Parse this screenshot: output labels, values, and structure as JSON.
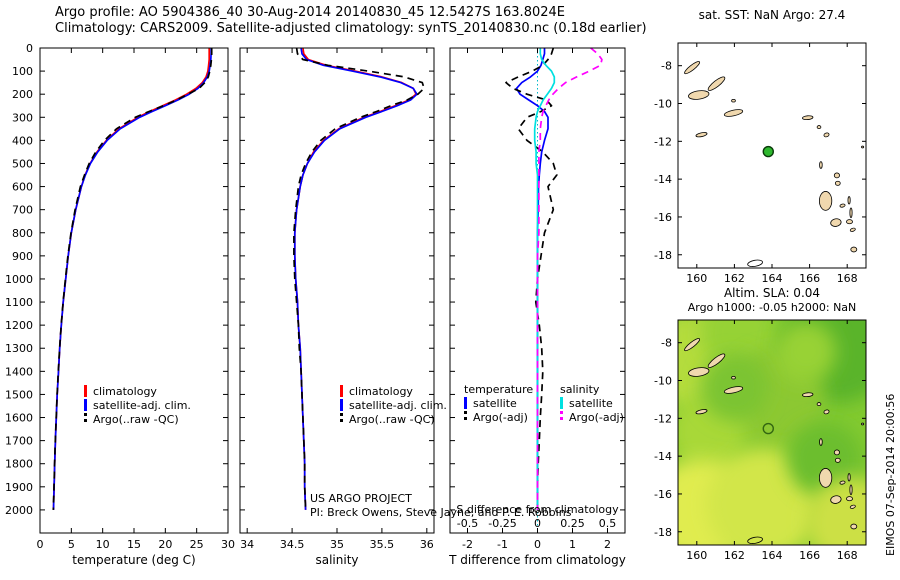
{
  "header": {
    "line1": "Argo profile: AO 5904386_40 30-Aug-2014 20140830_45 12.5427S 163.8024E",
    "line2": "Climatology: CARS2009. Satellite-adjusted climatology: synTS_20140830.nc (0.18d earlier)"
  },
  "footer": {
    "line1": "US ARGO PROJECT",
    "line2": "PI: Breck Owens, Steve Jayne, and P. E. Robbins"
  },
  "watermark": {
    "text": "EIMOS 07-Sep-2014 20:00:56"
  },
  "legends": {
    "profile": [
      {
        "label": "climatology",
        "color": "#ff0000",
        "style": "solid"
      },
      {
        "label": "satellite-adj. clim.",
        "color": "#0000ff",
        "style": "solid"
      },
      {
        "label": "Argo(..raw -QC)",
        "color": "#000000",
        "style": "dashed"
      }
    ],
    "diff": {
      "col1_header": "temperature",
      "col2_header": "salinity",
      "rows": [
        {
          "t_label": "satellite",
          "t_color": "#0000ff",
          "t_style": "solid",
          "s_label": "satellite",
          "s_color": "#00e0e0",
          "s_style": "solid"
        },
        {
          "t_label": "Argo(-adj)",
          "t_color": "#000000",
          "t_style": "dashed",
          "s_label": "Argo(-adj)",
          "s_color": "#ff00ff",
          "s_style": "dashed"
        }
      ]
    }
  },
  "islands": [
    [
      160.1,
      -9.55,
      0.55,
      0.22,
      -8,
      1
    ],
    [
      161.05,
      -8.95,
      0.55,
      0.16,
      -38,
      1
    ],
    [
      161.95,
      -10.5,
      0.5,
      0.15,
      -12,
      1
    ],
    [
      159.75,
      -8.1,
      0.5,
      0.13,
      -38,
      1
    ],
    [
      161.95,
      -9.85,
      0.1,
      0.07,
      0,
      1
    ],
    [
      160.25,
      -11.65,
      0.3,
      0.1,
      -12,
      1
    ],
    [
      165.9,
      -10.75,
      0.28,
      0.1,
      -5,
      1
    ],
    [
      166.5,
      -11.25,
      0.1,
      0.08,
      0,
      1
    ],
    [
      166.9,
      -11.66,
      0.14,
      0.1,
      -20,
      1
    ],
    [
      166.6,
      -13.25,
      0.07,
      0.18,
      0,
      1
    ],
    [
      167.45,
      -13.8,
      0.14,
      0.13,
      0,
      1
    ],
    [
      167.5,
      -14.22,
      0.13,
      0.11,
      0,
      1
    ],
    [
      166.85,
      -15.15,
      0.33,
      0.5,
      0,
      1
    ],
    [
      168.1,
      -15.12,
      0.06,
      0.2,
      0,
      1
    ],
    [
      167.75,
      -15.4,
      0.14,
      0.08,
      -15,
      1
    ],
    [
      168.2,
      -15.78,
      0.06,
      0.26,
      0,
      1
    ],
    [
      167.4,
      -16.3,
      0.28,
      0.2,
      -10,
      1
    ],
    [
      168.12,
      -16.25,
      0.16,
      0.11,
      0,
      1
    ],
    [
      168.3,
      -16.68,
      0.14,
      0.08,
      -20,
      1
    ],
    [
      168.35,
      -17.72,
      0.16,
      0.13,
      0,
      1
    ],
    [
      168.82,
      -12.3,
      0.06,
      0.05,
      0,
      1
    ],
    [
      163.1,
      -18.45,
      0.4,
      0.16,
      -10,
      0
    ]
  ],
  "chart_data": [
    {
      "id": "temperature",
      "type": "line",
      "xlabel": "temperature (deg C)",
      "xlim": [
        0,
        30
      ],
      "xticks": [
        0,
        5,
        10,
        15,
        20,
        25,
        30
      ],
      "xticklabels": [
        "0",
        "5",
        "10",
        "15",
        "20",
        "25",
        "30"
      ],
      "ylim": [
        0,
        2100
      ],
      "yticks": [
        0,
        100,
        200,
        300,
        400,
        500,
        600,
        700,
        800,
        900,
        1000,
        1100,
        1200,
        1300,
        1400,
        1500,
        1600,
        1700,
        1800,
        1900,
        2000
      ],
      "show_ytick_labels": true,
      "y_axis": "depth (m), 0 at surface, increasing downward",
      "depths": [
        0,
        25,
        50,
        75,
        100,
        125,
        150,
        175,
        200,
        225,
        250,
        275,
        300,
        350,
        400,
        450,
        500,
        550,
        600,
        700,
        800,
        900,
        1000,
        1100,
        1200,
        1300,
        1400,
        1500,
        1600,
        1700,
        1800,
        1900,
        2000
      ],
      "series": [
        {
          "name": "climatology",
          "color": "#ff0000",
          "style": "solid",
          "values": [
            27.0,
            27.0,
            27.0,
            26.9,
            26.8,
            26.5,
            25.9,
            24.9,
            23.4,
            21.6,
            19.6,
            17.5,
            15.6,
            12.6,
            10.6,
            9.1,
            8.0,
            7.2,
            6.6,
            5.7,
            5.0,
            4.5,
            4.1,
            3.7,
            3.4,
            3.15,
            2.95,
            2.75,
            2.6,
            2.45,
            2.35,
            2.25,
            2.15
          ]
        },
        {
          "name": "satellite-adj. clim.",
          "color": "#0000ff",
          "style": "solid",
          "values": [
            27.3,
            27.3,
            27.25,
            27.15,
            27.0,
            26.7,
            26.1,
            25.2,
            23.8,
            22.0,
            20.0,
            17.9,
            15.9,
            12.8,
            10.7,
            9.2,
            8.05,
            7.25,
            6.6,
            5.7,
            5.0,
            4.5,
            4.1,
            3.7,
            3.4,
            3.15,
            2.95,
            2.75,
            2.6,
            2.45,
            2.35,
            2.25,
            2.15
          ]
        },
        {
          "name": "Argo(..raw -QC)",
          "color": "#000000",
          "style": "dashed",
          "values": [
            27.4,
            27.4,
            27.35,
            27.25,
            27.1,
            26.85,
            26.3,
            25.4,
            23.6,
            21.8,
            19.7,
            17.4,
            15.2,
            12.2,
            10.3,
            8.9,
            7.85,
            7.1,
            6.45,
            5.6,
            4.95,
            4.45,
            4.05,
            3.68,
            3.38,
            3.12,
            2.92,
            2.73,
            2.58,
            2.44,
            2.33,
            2.23,
            2.13
          ]
        }
      ]
    },
    {
      "id": "salinity",
      "type": "line",
      "xlabel": "salinity",
      "xlim": [
        33.92,
        36.08
      ],
      "xticks": [
        34,
        34.5,
        35,
        35.5,
        36
      ],
      "xticklabels": [
        "34",
        "34.5",
        "35",
        "35.5",
        "36"
      ],
      "ylim": [
        0,
        2100
      ],
      "yticks": [
        0,
        100,
        200,
        300,
        400,
        500,
        600,
        700,
        800,
        900,
        1000,
        1100,
        1200,
        1300,
        1400,
        1500,
        1600,
        1700,
        1800,
        1900,
        2000
      ],
      "show_ytick_labels": false,
      "depths": [
        0,
        25,
        50,
        75,
        100,
        125,
        150,
        175,
        200,
        225,
        250,
        275,
        300,
        350,
        400,
        450,
        500,
        550,
        600,
        700,
        800,
        900,
        1000,
        1100,
        1200,
        1300,
        1400,
        1500,
        1600,
        1700,
        1800,
        1900,
        2000
      ],
      "series": [
        {
          "name": "climatology",
          "color": "#ff0000",
          "style": "solid",
          "values": [
            34.62,
            34.63,
            34.68,
            34.88,
            35.2,
            35.5,
            35.72,
            35.85,
            35.88,
            35.8,
            35.65,
            35.48,
            35.3,
            35.02,
            34.85,
            34.74,
            34.67,
            34.62,
            34.59,
            34.55,
            34.53,
            34.53,
            34.54,
            34.56,
            34.57,
            34.59,
            34.6,
            34.61,
            34.62,
            34.63,
            34.64,
            34.64,
            34.65
          ]
        },
        {
          "name": "satellite-adj. clim.",
          "color": "#0000ff",
          "style": "solid",
          "values": [
            34.6,
            34.61,
            34.66,
            34.85,
            35.17,
            35.48,
            35.71,
            35.85,
            35.89,
            35.82,
            35.67,
            35.5,
            35.32,
            35.03,
            34.86,
            34.75,
            34.67,
            34.62,
            34.59,
            34.55,
            34.53,
            34.53,
            34.54,
            34.56,
            34.57,
            34.59,
            34.6,
            34.61,
            34.62,
            34.63,
            34.64,
            34.64,
            34.65
          ]
        },
        {
          "name": "Argo(..raw -QC)",
          "color": "#000000",
          "style": "dashed",
          "values": [
            34.55,
            34.56,
            34.62,
            34.9,
            35.35,
            35.75,
            35.95,
            35.97,
            35.9,
            35.78,
            35.6,
            35.44,
            35.26,
            34.98,
            34.82,
            34.72,
            34.65,
            34.6,
            34.57,
            34.54,
            34.52,
            34.52,
            34.53,
            34.55,
            34.57,
            34.58,
            34.6,
            34.61,
            34.62,
            34.63,
            34.64,
            34.64,
            34.65
          ]
        }
      ]
    },
    {
      "id": "difference",
      "type": "line",
      "xlabel": "T difference from climatology",
      "xlim": [
        -2.5,
        2.5
      ],
      "xticks": [
        -2,
        -1,
        0,
        1,
        2
      ],
      "xticklabels": [
        "-2",
        "-1",
        "0",
        "1",
        "2"
      ],
      "ylim": [
        0,
        2100
      ],
      "yticks": [
        0,
        100,
        200,
        300,
        400,
        500,
        600,
        700,
        800,
        900,
        1000,
        1100,
        1200,
        1300,
        1400,
        1500,
        1600,
        1700,
        1800,
        1900,
        2000
      ],
      "show_ytick_labels": false,
      "zero_line": true,
      "secondary_scale": {
        "label": "S difference from climatology",
        "factor": 4,
        "tick_values": [
          -2,
          -1,
          0,
          1,
          2
        ],
        "tick_labels": [
          "-0.5",
          "-0.25",
          "0",
          "0.25",
          "0.5"
        ]
      },
      "depths": [
        0,
        25,
        50,
        75,
        100,
        125,
        150,
        175,
        200,
        225,
        250,
        275,
        300,
        350,
        400,
        450,
        500,
        550,
        600,
        700,
        800,
        900,
        1000,
        1100,
        1200,
        1300,
        1400,
        1500,
        1600,
        1700,
        1800,
        1900,
        2000
      ],
      "series": [
        {
          "name": "temperature satellite",
          "color": "#0000ff",
          "style": "solid",
          "values": [
            0.2,
            0.2,
            0.15,
            0.1,
            0.0,
            -0.2,
            -0.45,
            -0.6,
            -0.5,
            -0.25,
            0.0,
            0.2,
            0.3,
            0.3,
            0.2,
            0.12,
            0.08,
            0.05,
            0.03,
            0.02,
            0.0,
            0.0,
            0.0,
            0.0,
            0.0,
            0.0,
            0.0,
            0.0,
            0.0,
            0.0,
            0.0,
            0.0,
            0.0
          ]
        },
        {
          "name": "temperature Argo(-adj)",
          "color": "#000000",
          "style": "dashed",
          "values": [
            0.45,
            0.4,
            0.3,
            0.15,
            -0.15,
            -0.55,
            -0.9,
            -0.7,
            -0.3,
            0.25,
            0.4,
            0.1,
            -0.3,
            -0.55,
            -0.3,
            0.15,
            0.45,
            0.55,
            0.3,
            0.45,
            0.2,
            0.1,
            0.0,
            -0.05,
            0.05,
            0.12,
            0.15,
            0.12,
            0.08,
            0.05,
            0.02,
            0.0,
            0.0
          ]
        },
        {
          "name": "salinity satellite",
          "color": "#00e0e0",
          "style": "solid",
          "scale": 4,
          "values": [
            0.02,
            0.02,
            0.03,
            0.06,
            0.1,
            0.12,
            0.12,
            0.1,
            0.07,
            0.04,
            0.02,
            0.0,
            -0.01,
            -0.02,
            -0.02,
            -0.01,
            -0.01,
            0.0,
            0.0,
            0.0,
            0.0,
            0.0,
            0.0,
            0.0,
            0.0,
            0.0,
            0.0,
            0.0,
            0.0,
            0.0,
            0.0,
            0.0,
            0.0
          ]
        },
        {
          "name": "salinity Argo(-adj)",
          "color": "#ff00ff",
          "style": "dashed",
          "scale": 4,
          "values": [
            0.38,
            0.43,
            0.46,
            0.45,
            0.37,
            0.28,
            0.2,
            0.15,
            0.11,
            0.08,
            0.06,
            0.04,
            0.03,
            0.02,
            0.02,
            0.01,
            0.01,
            0.01,
            0.01,
            0.01,
            0.01,
            0.0,
            0.0,
            0.0,
            0.0,
            0.0,
            0.0,
            0.0,
            0.0,
            0.0,
            0.0,
            0.0,
            0.0
          ]
        }
      ]
    },
    {
      "id": "map_sst",
      "type": "map",
      "title": "sat. SST: NaN Argo: 27.4",
      "lon_lim": [
        159,
        169
      ],
      "lat_lim": [
        -18.7,
        -6.8
      ],
      "xticks": [
        160,
        162,
        164,
        166,
        168
      ],
      "yticks": [
        -8,
        -10,
        -12,
        -14,
        -16,
        -18
      ],
      "base_color": "#ffffff",
      "island_color": "#f0d8ae",
      "marker": {
        "lon": 163.8024,
        "lat": -12.5427,
        "fill": "#2eb82e",
        "stroke": "#0a3a0a"
      }
    },
    {
      "id": "map_sla",
      "type": "map",
      "title": "Altim. SLA: 0.04",
      "title2": "Argo h1000: -0.05 h2000: NaN",
      "lon_lim": [
        159,
        169
      ],
      "lat_lim": [
        -18.7,
        -6.8
      ],
      "xticks": [
        160,
        162,
        164,
        166,
        168
      ],
      "yticks": [
        -8,
        -10,
        -12,
        -14,
        -16,
        -18
      ],
      "base_color": "#82ca30",
      "island_color": "#f0d8ae",
      "marker": {
        "lon": 163.8024,
        "lat": -12.5427,
        "fill": "none",
        "stroke": "#336611"
      },
      "blobs": [
        [
          0.08,
          0.18,
          0.26,
          "#b4dc3c"
        ],
        [
          0.32,
          0.06,
          0.2,
          "#96d236"
        ],
        [
          0.85,
          0.12,
          0.3,
          "#5ab42a"
        ],
        [
          0.52,
          0.35,
          0.26,
          "#8cc832"
        ],
        [
          0.16,
          0.5,
          0.2,
          "#a8d838"
        ],
        [
          0.12,
          0.85,
          0.28,
          "#e0ec50"
        ],
        [
          0.45,
          0.82,
          0.3,
          "#d2e648"
        ],
        [
          0.78,
          0.62,
          0.2,
          "#6cbe2e"
        ],
        [
          0.92,
          0.9,
          0.24,
          "#cce044"
        ],
        [
          0.68,
          0.14,
          0.16,
          "#98d234"
        ],
        [
          0.3,
          0.3,
          0.18,
          "#7cc430"
        ]
      ]
    }
  ]
}
